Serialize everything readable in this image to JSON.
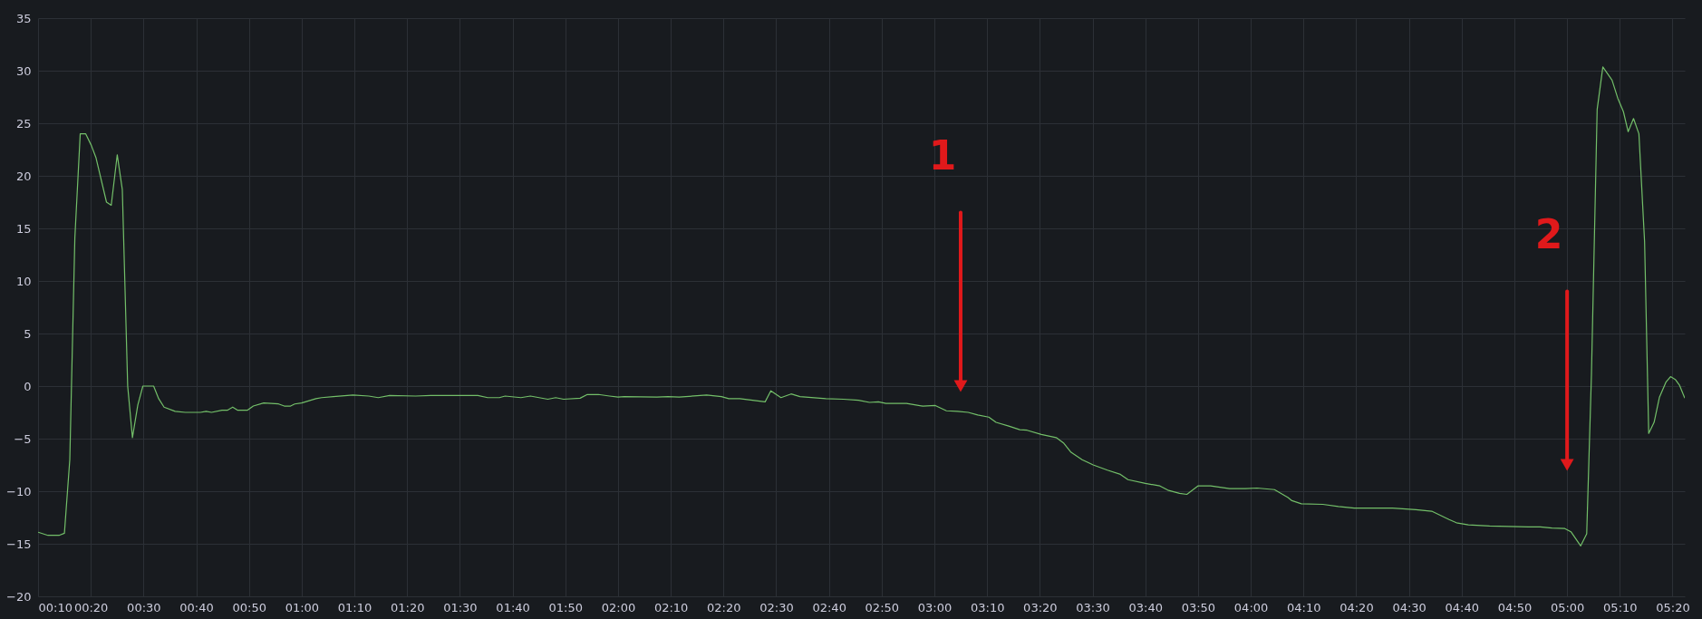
{
  "chart_data": {
    "type": "line",
    "grid": true,
    "marker": "none",
    "line_style": "solid",
    "xlim": [
      0.1667,
      5.372
    ],
    "ylim": [
      -20,
      35
    ],
    "yticks": [
      -20,
      -15,
      -10,
      -5,
      0,
      5,
      10,
      15,
      20,
      25,
      30,
      35
    ],
    "xticks": [
      {
        "value": 0.1667,
        "label": "00:10"
      },
      {
        "value": 0.3333,
        "label": "00:20"
      },
      {
        "value": 0.5,
        "label": "00:30"
      },
      {
        "value": 0.6667,
        "label": "00:40"
      },
      {
        "value": 0.8333,
        "label": "00:50"
      },
      {
        "value": 1.0,
        "label": "01:00"
      },
      {
        "value": 1.1667,
        "label": "01:10"
      },
      {
        "value": 1.3333,
        "label": "01:20"
      },
      {
        "value": 1.5,
        "label": "01:30"
      },
      {
        "value": 1.6667,
        "label": "01:40"
      },
      {
        "value": 1.8333,
        "label": "01:50"
      },
      {
        "value": 2.0,
        "label": "02:00"
      },
      {
        "value": 2.1667,
        "label": "02:10"
      },
      {
        "value": 2.3333,
        "label": "02:20"
      },
      {
        "value": 2.5,
        "label": "02:30"
      },
      {
        "value": 2.6667,
        "label": "02:40"
      },
      {
        "value": 2.8333,
        "label": "02:50"
      },
      {
        "value": 3.0,
        "label": "03:00"
      },
      {
        "value": 3.1667,
        "label": "03:10"
      },
      {
        "value": 3.3333,
        "label": "03:20"
      },
      {
        "value": 3.5,
        "label": "03:30"
      },
      {
        "value": 3.6667,
        "label": "03:40"
      },
      {
        "value": 3.8333,
        "label": "03:50"
      },
      {
        "value": 4.0,
        "label": "04:00"
      },
      {
        "value": 4.1667,
        "label": "04:10"
      },
      {
        "value": 4.3333,
        "label": "04:20"
      },
      {
        "value": 4.5,
        "label": "04:30"
      },
      {
        "value": 4.6667,
        "label": "04:40"
      },
      {
        "value": 4.8333,
        "label": "04:50"
      },
      {
        "value": 5.0,
        "label": "05:00"
      },
      {
        "value": 5.1667,
        "label": "05:10"
      },
      {
        "value": 5.3333,
        "label": "05:20"
      }
    ],
    "annotations": [
      {
        "text": "1",
        "x": 3.083,
        "y": 0
      },
      {
        "text": "2",
        "x": 5.0,
        "y": -7.5
      }
    ],
    "series": [
      {
        "color": "#73bf69",
        "x": [
          0.167,
          0.198,
          0.233,
          0.25,
          0.267,
          0.283,
          0.3,
          0.317,
          0.335,
          0.35,
          0.383,
          0.398,
          0.417,
          0.433,
          0.45,
          0.465,
          0.482,
          0.498,
          0.532,
          0.548,
          0.565,
          0.6,
          0.632,
          0.68,
          0.698,
          0.715,
          0.748,
          0.765,
          0.782,
          0.798,
          0.828,
          0.847,
          0.88,
          0.927,
          0.945,
          0.965,
          0.978,
          1.0,
          1.045,
          1.063,
          1.1,
          1.162,
          1.212,
          1.242,
          1.278,
          1.36,
          1.408,
          1.557,
          1.588,
          1.625,
          1.643,
          1.693,
          1.723,
          1.778,
          1.803,
          1.828,
          1.88,
          1.903,
          1.938,
          1.973,
          2.0,
          2.02,
          2.123,
          2.158,
          2.193,
          2.28,
          2.327,
          2.35,
          2.385,
          2.425,
          2.465,
          2.483,
          2.515,
          2.547,
          2.575,
          2.657,
          2.713,
          2.76,
          2.795,
          2.823,
          2.847,
          2.912,
          2.963,
          3.003,
          3.038,
          3.073,
          3.107,
          3.137,
          3.172,
          3.195,
          3.235,
          3.27,
          3.293,
          3.338,
          3.385,
          3.408,
          3.432,
          3.467,
          3.502,
          3.547,
          3.588,
          3.612,
          3.667,
          3.713,
          3.738,
          3.775,
          3.798,
          3.833,
          3.873,
          3.933,
          3.983,
          4.02,
          4.075,
          4.118,
          4.13,
          4.16,
          4.228,
          4.277,
          4.327,
          4.448,
          4.522,
          4.572,
          4.627,
          4.65,
          4.688,
          4.755,
          4.877,
          4.915,
          4.952,
          4.993,
          5.012,
          5.043,
          5.062,
          5.077,
          5.095,
          5.113,
          5.142,
          5.16,
          5.178,
          5.193,
          5.21,
          5.227,
          5.245,
          5.258,
          5.275,
          5.292,
          5.313,
          5.327,
          5.343,
          5.355,
          5.372
        ],
        "values": [
          -13.9,
          -14.2,
          -14.2,
          -14.0,
          -7.0,
          14.1,
          24.0,
          24.0,
          22.9,
          21.7,
          17.5,
          17.2,
          22.0,
          18.7,
          0,
          -4.9,
          -1.8,
          0,
          0,
          -1.2,
          -2.0,
          -2.4,
          -2.5,
          -2.5,
          -2.4,
          -2.5,
          -2.3,
          -2.3,
          -2.0,
          -2.3,
          -2.3,
          -1.9,
          -1.6,
          -1.7,
          -1.9,
          -1.9,
          -1.7,
          -1.6,
          -1.2,
          -1.1,
          -1.0,
          -0.85,
          -0.95,
          -1.1,
          -0.9,
          -0.95,
          -0.9,
          -0.9,
          -1.1,
          -1.1,
          -0.95,
          -1.1,
          -0.95,
          -1.25,
          -1.1,
          -1.25,
          -1.15,
          -0.8,
          -0.8,
          -0.95,
          -1.05,
          -1.0,
          -1.05,
          -1.0,
          -1.05,
          -0.85,
          -1.0,
          -1.2,
          -1.2,
          -1.35,
          -1.5,
          -0.45,
          -1.1,
          -0.75,
          -1.0,
          -1.2,
          -1.25,
          -1.35,
          -1.55,
          -1.5,
          -1.65,
          -1.65,
          -1.9,
          -1.85,
          -2.35,
          -2.4,
          -2.5,
          -2.75,
          -2.95,
          -3.45,
          -3.8,
          -4.15,
          -4.2,
          -4.6,
          -4.9,
          -5.4,
          -6.3,
          -7.0,
          -7.5,
          -8.0,
          -8.4,
          -8.9,
          -9.25,
          -9.5,
          -9.9,
          -10.2,
          -10.3,
          -9.5,
          -9.5,
          -9.75,
          -9.75,
          -9.7,
          -9.85,
          -10.6,
          -10.9,
          -11.2,
          -11.25,
          -11.45,
          -11.6,
          -11.6,
          -11.75,
          -11.9,
          -12.7,
          -13.0,
          -13.2,
          -13.3,
          -13.4,
          -13.4,
          -13.5,
          -13.55,
          -13.85,
          -15.2,
          -14.05,
          1.1,
          26.3,
          30.35,
          29.1,
          27.4,
          26.1,
          24.2,
          25.45,
          24.0,
          13.7,
          -4.5,
          -3.45,
          -1.05,
          0.4,
          0.9,
          0.6,
          0.1,
          -1.15
        ]
      }
    ]
  }
}
